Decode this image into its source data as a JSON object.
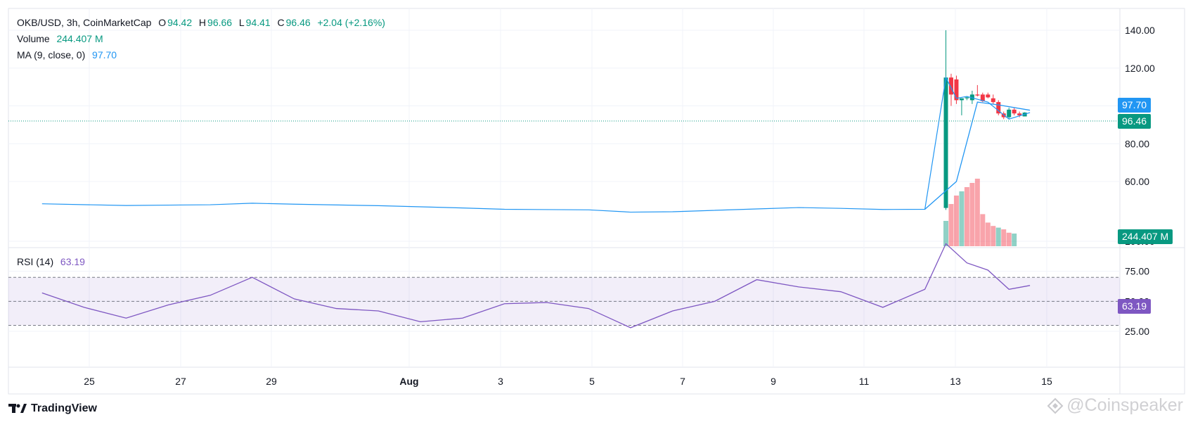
{
  "header": {
    "symbol_line": "OKB/USD, 3h, CoinMarketCap",
    "open_label": "O",
    "open": "94.42",
    "high_label": "H",
    "high": "96.66",
    "low_label": "L",
    "low": "94.41",
    "close_label": "C",
    "close": "96.46",
    "change": "+2.04 (+2.16%)",
    "volume_label": "Volume",
    "volume": "244.407 M",
    "ma_label": "MA (9, close, 0)",
    "ma": "97.70",
    "rsi_label": "RSI (14)",
    "rsi": "63.19"
  },
  "price_axis": {
    "ticks": [
      "140.00",
      "120.00",
      "80.00",
      "60.00"
    ]
  },
  "rsi_axis": {
    "ticks": [
      "100.00",
      "75.00",
      "50.00",
      "25.00"
    ]
  },
  "time_axis": {
    "ticks": [
      "25",
      "27",
      "29",
      "Aug",
      "3",
      "5",
      "7",
      "9",
      "11",
      "13",
      "15"
    ]
  },
  "tags": {
    "ma": "97.70",
    "price": "96.46",
    "volume": "244.407 M",
    "rsi": "63.19"
  },
  "colors": {
    "up": "#089981",
    "down": "#f23645",
    "ma": "#2196f3",
    "rsi": "#7e57c2"
  },
  "brand": {
    "name": "TradingView"
  },
  "watermark": {
    "text": "@Coinspeaker"
  },
  "chart_data": {
    "type": "line",
    "price_range": [
      40,
      145
    ],
    "rsi_range": [
      10,
      105
    ],
    "rsi_bands": [
      30,
      50,
      70
    ],
    "price_series": [
      {
        "x": "Jul 23",
        "y": 48.2
      },
      {
        "x": "Jul 25",
        "y": 47.3
      },
      {
        "x": "Jul 27",
        "y": 47.7
      },
      {
        "x": "Jul 28",
        "y": 48.5
      },
      {
        "x": "Jul 29",
        "y": 48.0
      },
      {
        "x": "Jul 31",
        "y": 47.2
      },
      {
        "x": "Aug 2",
        "y": 46.0
      },
      {
        "x": "Aug 3",
        "y": 45.3
      },
      {
        "x": "Aug 5",
        "y": 45.0
      },
      {
        "x": "Aug 6",
        "y": 43.8
      },
      {
        "x": "Aug 7",
        "y": 44.0
      },
      {
        "x": "Aug 9",
        "y": 45.5
      },
      {
        "x": "Aug 10",
        "y": 46.2
      },
      {
        "x": "Aug 11",
        "y": 45.8
      },
      {
        "x": "Aug 12",
        "y": 45.2
      },
      {
        "x": "Aug 13",
        "y": 45.3
      },
      {
        "x": "Aug 13 12:00",
        "y": 115.0
      },
      {
        "x": "Aug 13 18:00",
        "y": 104.0
      },
      {
        "x": "Aug 14",
        "y": 105.0
      },
      {
        "x": "Aug 14 12:00",
        "y": 102.0
      },
      {
        "x": "Aug 15",
        "y": 93.0
      },
      {
        "x": "Aug 15 12:00",
        "y": 96.46
      }
    ],
    "ma_series": [
      {
        "x": "Aug 13",
        "y": 45.3
      },
      {
        "x": "Aug 13 18:00",
        "y": 60.0
      },
      {
        "x": "Aug 14 06:00",
        "y": 102.0
      },
      {
        "x": "Aug 14 18:00",
        "y": 100.5
      },
      {
        "x": "Aug 15 12:00",
        "y": 97.7
      }
    ],
    "rsi_series": [
      {
        "x": "Jul 23",
        "y": 57
      },
      {
        "x": "Jul 24",
        "y": 45
      },
      {
        "x": "Jul 25",
        "y": 36
      },
      {
        "x": "Jul 26",
        "y": 47
      },
      {
        "x": "Jul 27",
        "y": 55
      },
      {
        "x": "Jul 28",
        "y": 70
      },
      {
        "x": "Jul 29",
        "y": 52
      },
      {
        "x": "Jul 30",
        "y": 44
      },
      {
        "x": "Jul 31",
        "y": 42
      },
      {
        "x": "Aug 1",
        "y": 33
      },
      {
        "x": "Aug 2",
        "y": 36
      },
      {
        "x": "Aug 3",
        "y": 48
      },
      {
        "x": "Aug 4",
        "y": 49
      },
      {
        "x": "Aug 5",
        "y": 44
      },
      {
        "x": "Aug 6",
        "y": 28
      },
      {
        "x": "Aug 7",
        "y": 42
      },
      {
        "x": "Aug 8",
        "y": 50
      },
      {
        "x": "Aug 9",
        "y": 68
      },
      {
        "x": "Aug 10",
        "y": 62
      },
      {
        "x": "Aug 11",
        "y": 58
      },
      {
        "x": "Aug 12",
        "y": 45
      },
      {
        "x": "Aug 13",
        "y": 60
      },
      {
        "x": "Aug 13 12:00",
        "y": 98
      },
      {
        "x": "Aug 14",
        "y": 82
      },
      {
        "x": "Aug 14 12:00",
        "y": 76
      },
      {
        "x": "Aug 15",
        "y": 60
      },
      {
        "x": "Aug 15 12:00",
        "y": 63.19
      }
    ],
    "volume_bars": [
      {
        "x": "Aug 13 12:00",
        "value": 0.3,
        "dir": "up"
      },
      {
        "x": "Aug 13 15:00",
        "value": 0.5,
        "dir": "down"
      },
      {
        "x": "Aug 13 18:00",
        "value": 0.6,
        "dir": "down"
      },
      {
        "x": "Aug 13 21:00",
        "value": 0.65,
        "dir": "up"
      },
      {
        "x": "Aug 14 00:00",
        "value": 0.7,
        "dir": "down"
      },
      {
        "x": "Aug 14 03:00",
        "value": 0.75,
        "dir": "down"
      },
      {
        "x": "Aug 14 06:00",
        "value": 0.8,
        "dir": "down"
      },
      {
        "x": "Aug 14 09:00",
        "value": 0.38,
        "dir": "down"
      },
      {
        "x": "Aug 14 12:00",
        "value": 0.28,
        "dir": "down"
      },
      {
        "x": "Aug 14 15:00",
        "value": 0.24,
        "dir": "down"
      },
      {
        "x": "Aug 14 18:00",
        "value": 0.22,
        "dir": "up"
      },
      {
        "x": "Aug 14 21:00",
        "value": 0.2,
        "dir": "down"
      },
      {
        "x": "Aug 15 00:00",
        "value": 0.16,
        "dir": "down"
      },
      {
        "x": "Aug 15 03:00",
        "value": 0.15,
        "dir": "up"
      }
    ],
    "candles": [
      {
        "x": "Aug 13 12:00",
        "o": 46,
        "h": 140,
        "l": 45,
        "c": 115,
        "dir": "up"
      },
      {
        "x": "Aug 13 15:00",
        "o": 115,
        "h": 117,
        "l": 100,
        "c": 106,
        "dir": "down"
      },
      {
        "x": "Aug 13 18:00",
        "o": 114,
        "h": 116,
        "l": 101,
        "c": 103,
        "dir": "down"
      },
      {
        "x": "Aug 13 21:00",
        "o": 103,
        "h": 104,
        "l": 95,
        "c": 104,
        "dir": "up"
      },
      {
        "x": "Aug 14 00:00",
        "o": 104,
        "h": 105,
        "l": 103,
        "c": 104.5,
        "dir": "up"
      },
      {
        "x": "Aug 14 03:00",
        "o": 103,
        "h": 108,
        "l": 101,
        "c": 106,
        "dir": "up"
      },
      {
        "x": "Aug 14 06:00",
        "o": 106,
        "h": 111,
        "l": 105,
        "c": 105.5,
        "dir": "down"
      },
      {
        "x": "Aug 14 09:00",
        "o": 106,
        "h": 107,
        "l": 102,
        "c": 102.5,
        "dir": "down"
      },
      {
        "x": "Aug 14 12:00",
        "o": 106,
        "h": 107,
        "l": 104,
        "c": 104.5,
        "dir": "down"
      },
      {
        "x": "Aug 14 15:00",
        "o": 104,
        "h": 106,
        "l": 101,
        "c": 102,
        "dir": "down"
      },
      {
        "x": "Aug 14 18:00",
        "o": 102,
        "h": 103,
        "l": 95,
        "c": 96,
        "dir": "down"
      },
      {
        "x": "Aug 14 21:00",
        "o": 96,
        "h": 97,
        "l": 93,
        "c": 94,
        "dir": "down"
      },
      {
        "x": "Aug 15 00:00",
        "o": 94,
        "h": 99,
        "l": 93,
        "c": 98,
        "dir": "up"
      },
      {
        "x": "Aug 15 03:00",
        "o": 98,
        "h": 99,
        "l": 95,
        "c": 96,
        "dir": "down"
      },
      {
        "x": "Aug 15 06:00",
        "o": 96,
        "h": 97,
        "l": 94,
        "c": 95,
        "dir": "down"
      },
      {
        "x": "Aug 15 09:00",
        "o": 94.42,
        "h": 96.66,
        "l": 94.41,
        "c": 96.46,
        "dir": "up"
      }
    ]
  }
}
